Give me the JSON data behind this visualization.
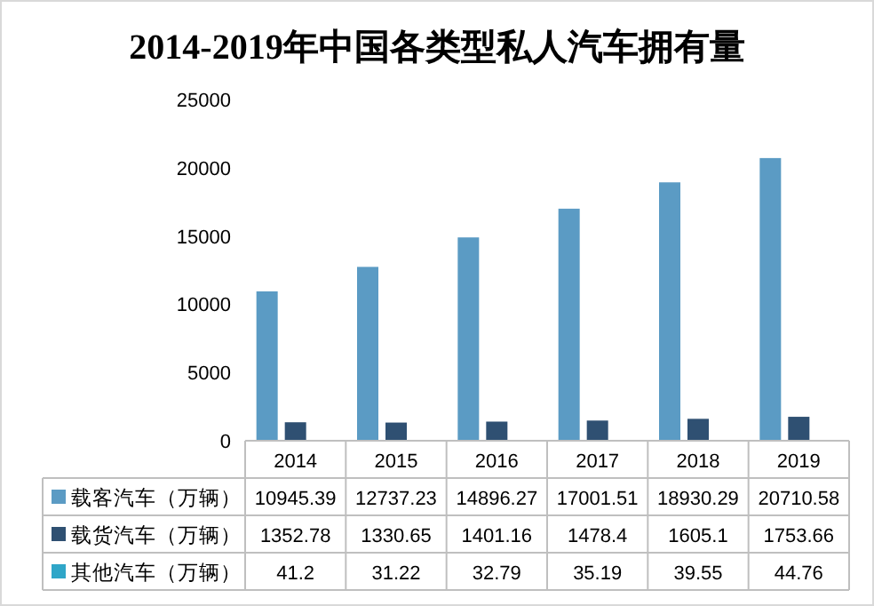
{
  "chart_data": {
    "type": "bar",
    "title": "2014-2019年中国各类型私人汽车拥有量",
    "categories": [
      "2014",
      "2015",
      "2016",
      "2017",
      "2018",
      "2019"
    ],
    "series": [
      {
        "name": "载客汽车（万辆）",
        "color": "#5b9bc4",
        "values": [
          10945.39,
          12737.23,
          14896.27,
          17001.51,
          18930.29,
          20710.58
        ]
      },
      {
        "name": "载货汽车（万辆）",
        "color": "#2f5072",
        "values": [
          1352.78,
          1330.65,
          1401.16,
          1478.4,
          1605.1,
          1753.66
        ]
      },
      {
        "name": "其他汽车（万辆）",
        "color": "#2fa6c8",
        "values": [
          41.2,
          31.22,
          32.79,
          35.19,
          39.55,
          44.76
        ]
      }
    ],
    "ylim": [
      0,
      25000
    ],
    "yticks": [
      0,
      5000,
      10000,
      15000,
      20000,
      25000
    ],
    "data_labels": true,
    "legend": "bottom"
  }
}
